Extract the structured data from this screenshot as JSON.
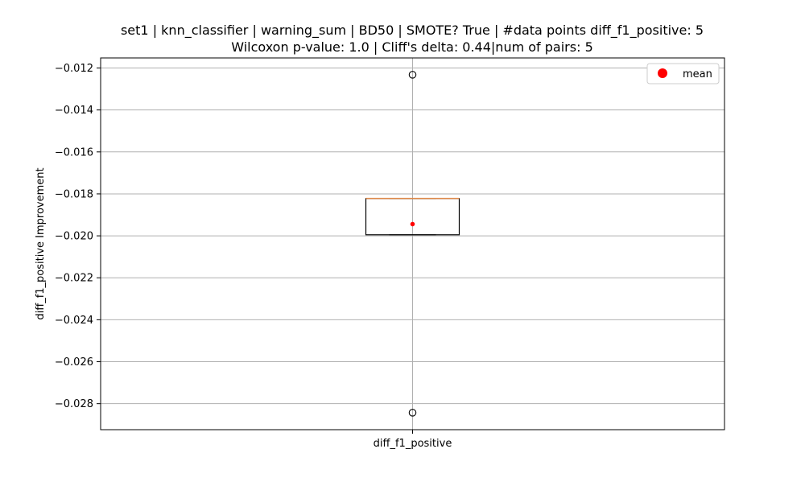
{
  "chart_data": {
    "type": "box",
    "title": "set1 | knn_classifier | warning_sum | BD50 | SMOTE? True | #data points diff_f1_positive: 5",
    "subtitle": "Wilcoxon p-value: 1.0 | Cliff's delta: 0.44|num of pairs: 5",
    "xlabel": "",
    "ylabel": "diff_f1_positive Improvement",
    "categories": [
      "diff_f1_positive"
    ],
    "box": {
      "q1": -0.01995,
      "median": -0.01822,
      "q3": -0.01822,
      "whisker_low": -0.01995,
      "whisker_high": -0.01822,
      "mean": -0.01944,
      "outliers": [
        -0.01232,
        -0.02843
      ]
    },
    "ylim": [
      -0.02924,
      -0.01152
    ],
    "yticks": [
      -0.012,
      -0.014,
      -0.016,
      -0.018,
      -0.02,
      -0.022,
      -0.024,
      -0.026,
      -0.028
    ],
    "ytick_labels": [
      "−0.012",
      "−0.014",
      "−0.016",
      "−0.018",
      "−0.020",
      "−0.022",
      "−0.024",
      "−0.026",
      "−0.028"
    ],
    "grid": true,
    "legend": {
      "position": "upper-right",
      "entries": [
        {
          "label": "mean",
          "color": "#ff0000",
          "marker": "circle"
        }
      ]
    },
    "colors": {
      "box": "#000000",
      "median": "#e08a4b",
      "mean": "#ff0000",
      "grid": "#b0b0b0",
      "outlier": "#000000"
    }
  }
}
